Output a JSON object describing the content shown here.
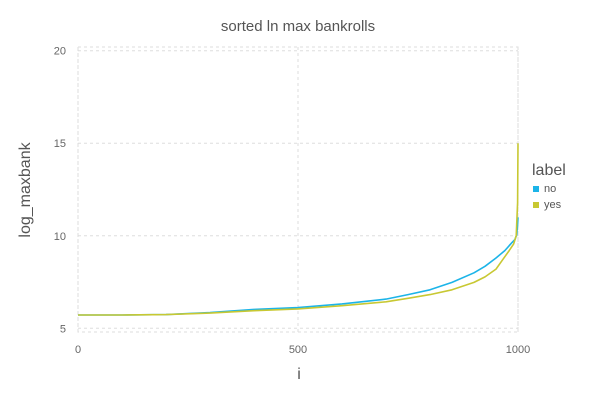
{
  "chart_data": {
    "type": "line",
    "title": "sorted ln max bankrolls",
    "xlabel": "i",
    "ylabel": "log_maxbank",
    "xlim": [
      0,
      1000
    ],
    "ylim": [
      4.8,
      20.2
    ],
    "x_ticks": [
      0,
      500,
      1000
    ],
    "y_ticks": [
      5,
      10,
      15,
      20
    ],
    "grid": true,
    "legend": {
      "title": "label",
      "placement": "right"
    },
    "series": [
      {
        "name": "no",
        "color": "#1cb4e8",
        "x": [
          0,
          100,
          200,
          300,
          400,
          500,
          600,
          700,
          750,
          800,
          850,
          900,
          925,
          950,
          970,
          985,
          993,
          997,
          999,
          1000
        ],
        "y": [
          5.72,
          5.72,
          5.74,
          5.85,
          6.02,
          6.12,
          6.32,
          6.58,
          6.82,
          7.08,
          7.48,
          8.0,
          8.35,
          8.8,
          9.2,
          9.6,
          9.8,
          10.05,
          10.6,
          11.0
        ]
      },
      {
        "name": "yes",
        "color": "#c8c832",
        "x": [
          0,
          100,
          200,
          300,
          400,
          500,
          600,
          700,
          750,
          800,
          850,
          900,
          925,
          950,
          965,
          980,
          990,
          996,
          999,
          1000
        ],
        "y": [
          5.72,
          5.72,
          5.74,
          5.82,
          5.95,
          6.05,
          6.22,
          6.43,
          6.62,
          6.82,
          7.08,
          7.48,
          7.78,
          8.2,
          8.7,
          9.2,
          9.55,
          10.0,
          11.8,
          15.0
        ]
      }
    ]
  }
}
